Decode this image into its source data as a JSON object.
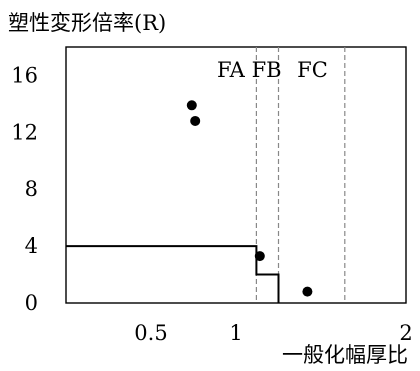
{
  "chart_data": {
    "type": "scatter",
    "title": "",
    "ylabel": "塑性変形倍率(R)",
    "xlabel": "一般化幅厚比",
    "xlim": [
      0,
      2
    ],
    "ylim": [
      0,
      18
    ],
    "xticks": [
      {
        "value": 0.5,
        "label": "0.5"
      },
      {
        "value": 1,
        "label": "1"
      },
      {
        "value": 2,
        "label": "2"
      }
    ],
    "yticks": [
      {
        "value": 0,
        "label": "0"
      },
      {
        "value": 4,
        "label": "4"
      },
      {
        "value": 8,
        "label": "8"
      },
      {
        "value": 12,
        "label": "12"
      },
      {
        "value": 16,
        "label": "16"
      }
    ],
    "zone_boundaries": [
      1.12,
      1.25,
      1.64
    ],
    "zones": [
      {
        "label": "FA",
        "x": 0.97
      },
      {
        "label": "FB",
        "x": 1.18
      },
      {
        "label": "FC",
        "x": 1.45
      }
    ],
    "step_line": {
      "x": [
        0,
        1.12,
        1.12,
        1.25,
        1.25
      ],
      "y": [
        4,
        4,
        2,
        2,
        0
      ]
    },
    "points": [
      {
        "x": 0.74,
        "y": 13.9
      },
      {
        "x": 0.76,
        "y": 12.8
      },
      {
        "x": 1.14,
        "y": 3.3
      },
      {
        "x": 1.42,
        "y": 0.8
      }
    ],
    "grid": false,
    "legend": "none"
  }
}
